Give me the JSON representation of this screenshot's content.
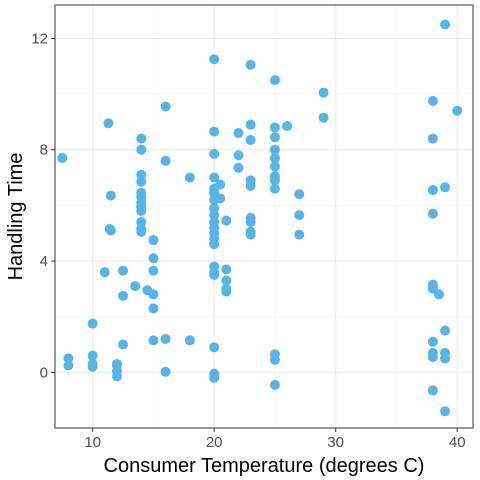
{
  "chart_data": {
    "type": "scatter",
    "title": "",
    "xlabel": "Consumer Temperature (degrees C)",
    "ylabel": "Handling Time",
    "xlim": [
      6.9,
      41.3
    ],
    "ylim": [
      -2.0,
      13.2
    ],
    "x_ticks": [
      10,
      20,
      30,
      40
    ],
    "y_ticks": [
      0,
      4,
      8,
      12
    ],
    "grid": true,
    "point_color": "#56B4E9",
    "points": [
      {
        "x": 7.5,
        "y": 7.7
      },
      {
        "x": 8.0,
        "y": 0.5
      },
      {
        "x": 8.0,
        "y": 0.25
      },
      {
        "x": 10.0,
        "y": 1.75
      },
      {
        "x": 10.0,
        "y": 0.6
      },
      {
        "x": 10.0,
        "y": 0.3
      },
      {
        "x": 10.0,
        "y": 0.2
      },
      {
        "x": 11.0,
        "y": 3.6
      },
      {
        "x": 11.3,
        "y": 8.95
      },
      {
        "x": 11.5,
        "y": 6.35
      },
      {
        "x": 11.4,
        "y": 5.15
      },
      {
        "x": 11.5,
        "y": 5.1
      },
      {
        "x": 12.0,
        "y": 0.3
      },
      {
        "x": 12.0,
        "y": 0.25
      },
      {
        "x": 12.0,
        "y": 0.05
      },
      {
        "x": 12.0,
        "y": -0.15
      },
      {
        "x": 12.5,
        "y": 3.65
      },
      {
        "x": 12.5,
        "y": 2.75
      },
      {
        "x": 12.5,
        "y": 1.0
      },
      {
        "x": 13.5,
        "y": 3.1
      },
      {
        "x": 14.0,
        "y": 8.4
      },
      {
        "x": 14.0,
        "y": 8.0
      },
      {
        "x": 14.0,
        "y": 7.1
      },
      {
        "x": 14.0,
        "y": 6.85
      },
      {
        "x": 14.0,
        "y": 6.45
      },
      {
        "x": 14.0,
        "y": 6.3
      },
      {
        "x": 14.0,
        "y": 6.1
      },
      {
        "x": 14.0,
        "y": 5.95
      },
      {
        "x": 14.0,
        "y": 5.8
      },
      {
        "x": 14.0,
        "y": 5.4
      },
      {
        "x": 14.0,
        "y": 5.15
      },
      {
        "x": 14.0,
        "y": 5.05
      },
      {
        "x": 14.5,
        "y": 2.95
      },
      {
        "x": 15.0,
        "y": 4.75
      },
      {
        "x": 15.0,
        "y": 4.1
      },
      {
        "x": 15.0,
        "y": 3.65
      },
      {
        "x": 15.0,
        "y": 2.8
      },
      {
        "x": 15.0,
        "y": 2.3
      },
      {
        "x": 15.0,
        "y": 1.15
      },
      {
        "x": 16.0,
        "y": 9.55
      },
      {
        "x": 16.0,
        "y": 7.6
      },
      {
        "x": 16.0,
        "y": 1.2
      },
      {
        "x": 16.0,
        "y": 0.02
      },
      {
        "x": 18.0,
        "y": 7.0
      },
      {
        "x": 18.0,
        "y": 1.15
      },
      {
        "x": 20.0,
        "y": 11.25
      },
      {
        "x": 20.0,
        "y": 8.65
      },
      {
        "x": 20.0,
        "y": 7.85
      },
      {
        "x": 20.0,
        "y": 7.0
      },
      {
        "x": 20.0,
        "y": 6.6
      },
      {
        "x": 20.0,
        "y": 6.45
      },
      {
        "x": 20.0,
        "y": 6.2
      },
      {
        "x": 20.0,
        "y": 5.9
      },
      {
        "x": 20.0,
        "y": 5.65
      },
      {
        "x": 20.0,
        "y": 5.4
      },
      {
        "x": 20.0,
        "y": 5.2
      },
      {
        "x": 20.0,
        "y": 5.0
      },
      {
        "x": 20.0,
        "y": 4.8
      },
      {
        "x": 20.0,
        "y": 4.6
      },
      {
        "x": 20.0,
        "y": 3.8
      },
      {
        "x": 20.0,
        "y": 3.6
      },
      {
        "x": 20.0,
        "y": 3.5
      },
      {
        "x": 20.0,
        "y": 0.9
      },
      {
        "x": 20.0,
        "y": -0.05
      },
      {
        "x": 20.0,
        "y": -0.2
      },
      {
        "x": 20.5,
        "y": 6.75
      },
      {
        "x": 20.5,
        "y": 6.25
      },
      {
        "x": 21.0,
        "y": 5.45
      },
      {
        "x": 21.0,
        "y": 3.7
      },
      {
        "x": 21.0,
        "y": 3.3
      },
      {
        "x": 21.0,
        "y": 3.0
      },
      {
        "x": 21.0,
        "y": 2.9
      },
      {
        "x": 22.0,
        "y": 8.6
      },
      {
        "x": 22.0,
        "y": 7.8
      },
      {
        "x": 22.0,
        "y": 7.35
      },
      {
        "x": 23.0,
        "y": 11.05
      },
      {
        "x": 23.0,
        "y": 8.9
      },
      {
        "x": 23.0,
        "y": 8.35
      },
      {
        "x": 23.0,
        "y": 6.9
      },
      {
        "x": 23.0,
        "y": 6.7
      },
      {
        "x": 23.0,
        "y": 5.55
      },
      {
        "x": 23.0,
        "y": 5.4
      },
      {
        "x": 23.0,
        "y": 5.05
      },
      {
        "x": 23.0,
        "y": 4.95
      },
      {
        "x": 25.0,
        "y": 10.5
      },
      {
        "x": 25.0,
        "y": 8.8
      },
      {
        "x": 25.0,
        "y": 8.45
      },
      {
        "x": 25.0,
        "y": 8.0
      },
      {
        "x": 25.0,
        "y": 7.7
      },
      {
        "x": 25.0,
        "y": 7.4
      },
      {
        "x": 25.0,
        "y": 7.05
      },
      {
        "x": 25.0,
        "y": 6.9
      },
      {
        "x": 25.0,
        "y": 6.6
      },
      {
        "x": 25.0,
        "y": 0.65
      },
      {
        "x": 25.0,
        "y": 0.45
      },
      {
        "x": 25.0,
        "y": -0.45
      },
      {
        "x": 26.0,
        "y": 8.85
      },
      {
        "x": 27.0,
        "y": 6.4
      },
      {
        "x": 27.0,
        "y": 5.65
      },
      {
        "x": 27.0,
        "y": 4.95
      },
      {
        "x": 29.0,
        "y": 10.05
      },
      {
        "x": 29.0,
        "y": 9.15
      },
      {
        "x": 38.0,
        "y": 9.75
      },
      {
        "x": 38.0,
        "y": 8.4
      },
      {
        "x": 38.0,
        "y": 6.55
      },
      {
        "x": 38.0,
        "y": 5.7
      },
      {
        "x": 38.0,
        "y": 3.15
      },
      {
        "x": 38.0,
        "y": 3.0
      },
      {
        "x": 38.0,
        "y": 1.1
      },
      {
        "x": 38.0,
        "y": 0.7
      },
      {
        "x": 38.0,
        "y": 0.55
      },
      {
        "x": 38.0,
        "y": -0.65
      },
      {
        "x": 38.5,
        "y": 2.8
      },
      {
        "x": 39.0,
        "y": 12.5
      },
      {
        "x": 39.0,
        "y": 6.65
      },
      {
        "x": 39.0,
        "y": 1.5
      },
      {
        "x": 39.0,
        "y": 0.7
      },
      {
        "x": 39.0,
        "y": 0.5
      },
      {
        "x": 39.0,
        "y": -1.4
      },
      {
        "x": 40.0,
        "y": 9.4
      }
    ]
  }
}
